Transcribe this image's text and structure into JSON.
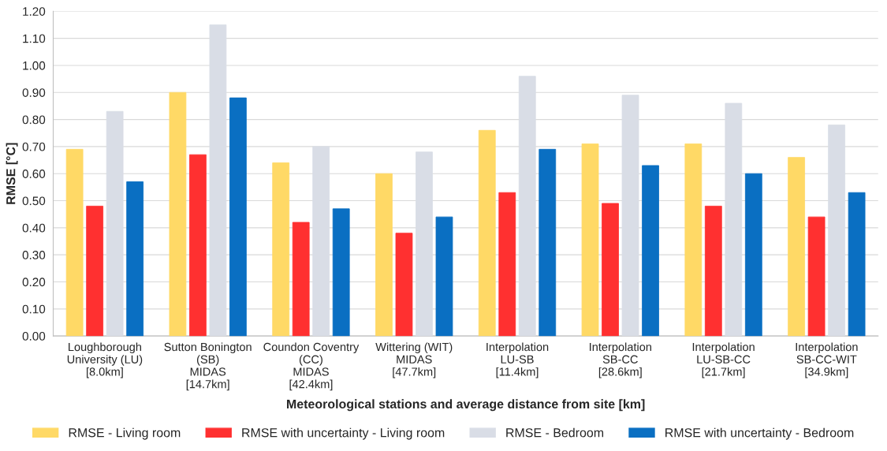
{
  "chart_data": {
    "type": "bar",
    "xlabel": "Meteorological stations and average distance from site [km]",
    "ylabel": "RMSE [°C]",
    "categories": [
      "Loughborough\nUniversity (LU)\n[8.0km]",
      "Sutton Bonington\n(SB)\nMIDAS\n[14.7km]",
      "Coundon Coventry\n(CC)\nMIDAS\n[42.4km]",
      "Wittering (WIT)\nMIDAS\n[47.7km]",
      "Interpolation\nLU-SB\n[11.4km]",
      "Interpolation\nSB-CC\n[28.6km]",
      "Interpolation\nLU-SB-CC\n[21.7km]",
      "Interpolation\nSB-CC-WIT\n[34.9km]"
    ],
    "series": [
      {
        "name": "RMSE - Living room",
        "color": "#ffd966",
        "values": [
          0.69,
          0.9,
          0.64,
          0.6,
          0.76,
          0.71,
          0.71,
          0.66
        ]
      },
      {
        "name": "RMSE with uncertainty - Living room",
        "color": "#ff3030",
        "values": [
          0.48,
          0.67,
          0.42,
          0.38,
          0.53,
          0.49,
          0.48,
          0.44
        ]
      },
      {
        "name": "RMSE - Bedroom",
        "color": "#d9dde6",
        "values": [
          0.83,
          1.15,
          0.7,
          0.68,
          0.96,
          0.89,
          0.86,
          0.78
        ]
      },
      {
        "name": "RMSE with uncertainty - Bedroom",
        "color": "#0a6fc2",
        "values": [
          0.57,
          0.88,
          0.47,
          0.44,
          0.69,
          0.63,
          0.6,
          0.53
        ]
      }
    ],
    "ylim": [
      0,
      1.2
    ],
    "yticks": [
      {
        "value": 0,
        "label": "0.00"
      },
      {
        "value": 0.1,
        "label": "0.10"
      },
      {
        "value": 0.2,
        "label": "0.20"
      },
      {
        "value": 0.3,
        "label": "0.30"
      },
      {
        "value": 0.4,
        "label": "0.40"
      },
      {
        "value": 0.5,
        "label": "0.50"
      },
      {
        "value": 0.6,
        "label": "0.60"
      },
      {
        "value": 0.7,
        "label": "0.70"
      },
      {
        "value": 0.8,
        "label": "0.80"
      },
      {
        "value": 0.9,
        "label": "0.90"
      },
      {
        "value": 1.0,
        "label": "1.00"
      },
      {
        "value": 1.1,
        "label": "1.10"
      },
      {
        "value": 1.2,
        "label": "1.20"
      }
    ],
    "grid": "y",
    "legend": "bottom"
  }
}
